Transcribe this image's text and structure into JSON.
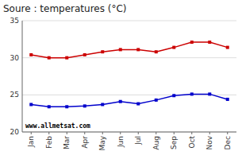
{
  "chart_data": {
    "type": "line",
    "title": "Soure : temperatures (°C)",
    "categories": [
      "Jan",
      "Feb",
      "Mar",
      "Apr",
      "May",
      "Jun",
      "Jul",
      "Aug",
      "Sep",
      "Oct",
      "Nov",
      "Dec"
    ],
    "series": [
      {
        "color": "#cc0000",
        "marker": "square",
        "values": [
          30.4,
          30.0,
          30.0,
          30.4,
          30.8,
          31.1,
          31.1,
          30.8,
          31.4,
          32.1,
          32.1,
          31.4
        ]
      },
      {
        "color": "#0000cc",
        "marker": "square",
        "values": [
          23.7,
          23.4,
          23.4,
          23.5,
          23.7,
          24.1,
          23.8,
          24.3,
          24.9,
          25.1,
          25.1,
          24.4
        ]
      }
    ],
    "ylim": [
      20,
      35
    ],
    "yticks": [
      20,
      25,
      30,
      35
    ],
    "grid": true,
    "annotations": [
      "www.allmetsat.com"
    ]
  }
}
